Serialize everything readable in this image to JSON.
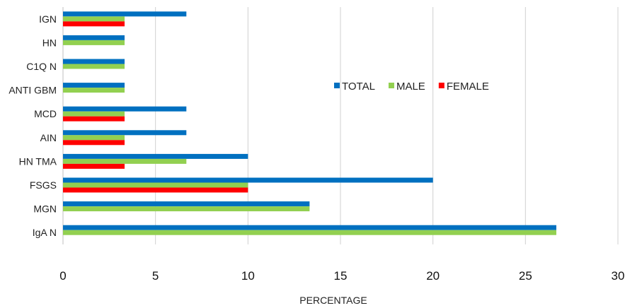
{
  "chart_data": {
    "type": "bar",
    "orientation": "horizontal",
    "title": "",
    "xlabel": "PERCENTAGE",
    "ylabel": "",
    "xlim": [
      0,
      30
    ],
    "x_ticks": [
      0,
      5,
      10,
      15,
      20,
      25,
      30
    ],
    "grid": "vertical major gridlines",
    "legend_position": "center-right",
    "categories": [
      "IGN",
      "HN",
      "C1Q N",
      "ANTI GBM",
      "MCD",
      "AIN",
      "HN TMA",
      "FSGS",
      "MGN",
      "IgA N"
    ],
    "series": [
      {
        "name": "TOTAL",
        "color": "#0070C0",
        "values": [
          6.67,
          3.33,
          3.33,
          3.33,
          6.67,
          6.67,
          10,
          20,
          13.33,
          26.67
        ]
      },
      {
        "name": "MALE",
        "color": "#92D050",
        "values": [
          3.33,
          3.33,
          3.33,
          3.33,
          3.33,
          3.33,
          6.67,
          10,
          13.33,
          26.67
        ]
      },
      {
        "name": "FEMALE",
        "color": "#FF0000",
        "values": [
          3.33,
          0,
          0,
          0,
          3.33,
          3.33,
          3.33,
          10,
          0,
          0
        ]
      }
    ]
  }
}
